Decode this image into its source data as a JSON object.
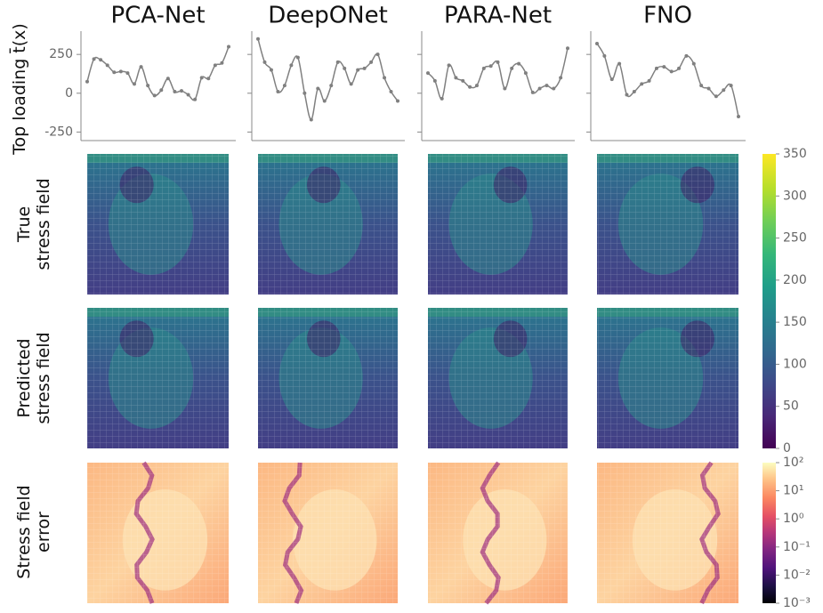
{
  "row_labels": [
    [
      "Top loading t̄(x)"
    ],
    [
      "True",
      "stress field"
    ],
    [
      "Predicted",
      "stress field"
    ],
    [
      "Stress field",
      "error"
    ]
  ],
  "chart_data": [
    {
      "type": "line",
      "title": "PCA-Net",
      "color": "#808080",
      "ylim": [
        -305,
        400
      ],
      "yticks": [
        -250,
        0,
        250
      ],
      "values": [
        75,
        220,
        215,
        180,
        135,
        140,
        130,
        60,
        170,
        50,
        -15,
        20,
        95,
        10,
        15,
        -10,
        -40,
        100,
        95,
        180,
        195,
        300
      ]
    },
    {
      "type": "line",
      "title": "DeepONet",
      "color": "#808080",
      "ylim": [
        -305,
        400
      ],
      "yticks": [
        -250,
        0,
        250
      ],
      "values": [
        350,
        200,
        150,
        10,
        50,
        180,
        230,
        0,
        -170,
        30,
        -50,
        50,
        200,
        160,
        60,
        150,
        160,
        200,
        250,
        100,
        10,
        -50
      ]
    },
    {
      "type": "line",
      "title": "PARA-Net",
      "color": "#808080",
      "ylim": [
        -305,
        400
      ],
      "yticks": [
        -250,
        0,
        250
      ],
      "values": [
        130,
        80,
        -35,
        180,
        100,
        80,
        40,
        50,
        160,
        175,
        200,
        30,
        160,
        190,
        130,
        5,
        30,
        50,
        30,
        100,
        290
      ]
    },
    {
      "type": "line",
      "title": "FNO",
      "color": "#808080",
      "ylim": [
        -305,
        400
      ],
      "yticks": [
        -250,
        0,
        250
      ],
      "values": [
        320,
        240,
        90,
        190,
        -10,
        10,
        60,
        80,
        160,
        170,
        140,
        160,
        240,
        190,
        50,
        30,
        -20,
        20,
        50,
        -150
      ]
    },
    {
      "type": "colorbar",
      "colormap": "viridis",
      "log": false,
      "ylim": [
        0,
        350
      ],
      "yticks": [
        0,
        50,
        100,
        150,
        200,
        250,
        300,
        350
      ]
    },
    {
      "type": "colorbar",
      "colormap": "magma",
      "log": true,
      "ylim": [
        0.001,
        100
      ],
      "yticks": [
        {
          "value": 0.001,
          "label": "10⁻³"
        },
        {
          "value": 0.01,
          "label": "10⁻²"
        },
        {
          "value": 0.1,
          "label": "10⁻¹"
        },
        {
          "value": 1,
          "label": "10⁰"
        },
        {
          "value": 10,
          "label": "10¹"
        },
        {
          "value": 100,
          "label": "10²"
        }
      ]
    }
  ]
}
